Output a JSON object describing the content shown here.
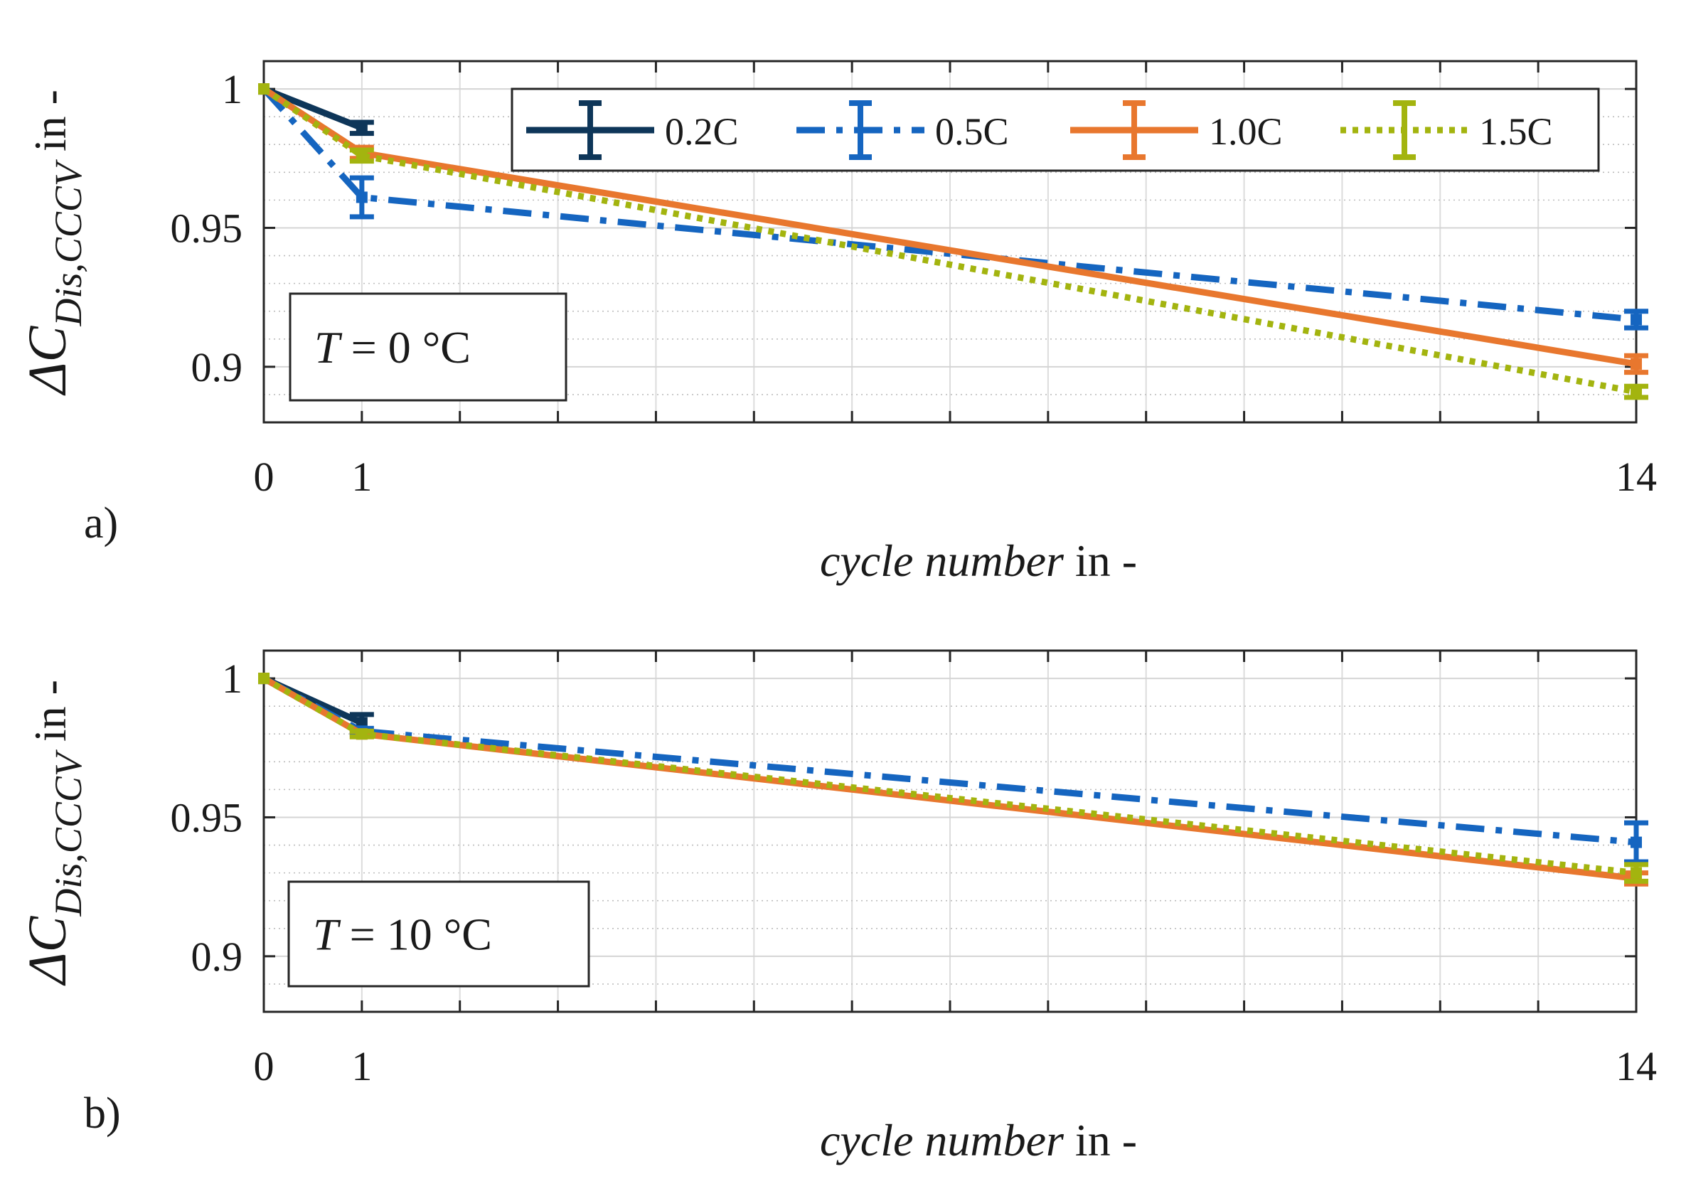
{
  "legend": [
    {
      "label": "0.2C",
      "color": "#0e3659",
      "dash": "solid"
    },
    {
      "label": "0.5C",
      "color": "#1565c0",
      "dash": "dashdot"
    },
    {
      "label": "1.0C",
      "color": "#e8772e",
      "dash": "solid"
    },
    {
      "label": "1.5C",
      "color": "#a3b40f",
      "dash": "dotted"
    }
  ],
  "chart_data": [
    {
      "type": "line",
      "panel_label": "a)",
      "annotation": {
        "prefix": "T",
        "text": " = 0 °C"
      },
      "xlabel": {
        "italic": "cycle number",
        "rest": " in -"
      },
      "ylabel": {
        "main": "ΔC",
        "sub": "Dis,CCCV",
        "rest": " in -"
      },
      "x_ticks": [
        0,
        1,
        14
      ],
      "y_ticks": [
        0.9,
        0.95,
        1
      ],
      "y_tick_labels": [
        "0.9",
        "0.95",
        "1"
      ],
      "xlim": [
        0,
        14
      ],
      "ylim": [
        0.88,
        1.01
      ],
      "series": [
        {
          "name": "0.2C",
          "x": [
            0,
            1
          ],
          "y": [
            1.0,
            0.986
          ],
          "err": [
            0,
            0.002
          ]
        },
        {
          "name": "0.5C",
          "x": [
            0,
            1,
            14
          ],
          "y": [
            1.0,
            0.961,
            0.917
          ],
          "err": [
            0,
            0.007,
            0.003
          ]
        },
        {
          "name": "1.0C",
          "x": [
            0,
            1,
            14
          ],
          "y": [
            1.0,
            0.977,
            0.901
          ],
          "err": [
            0,
            0.002,
            0.003
          ]
        },
        {
          "name": "1.5C",
          "x": [
            0,
            1,
            14
          ],
          "y": [
            1.0,
            0.976,
            0.891
          ],
          "err": [
            0,
            0.002,
            0.002
          ]
        }
      ]
    },
    {
      "type": "line",
      "panel_label": "b)",
      "annotation": {
        "prefix": "T",
        "text": " = 10 °C"
      },
      "xlabel": {
        "italic": "cycle number",
        "rest": " in -"
      },
      "ylabel": {
        "main": "ΔC",
        "sub": "Dis,CCCV",
        "rest": " in -"
      },
      "x_ticks": [
        0,
        1,
        14
      ],
      "y_ticks": [
        0.9,
        0.95,
        1
      ],
      "y_tick_labels": [
        "0.9",
        "0.95",
        "1"
      ],
      "xlim": [
        0,
        14
      ],
      "ylim": [
        0.88,
        1.01
      ],
      "series": [
        {
          "name": "0.2C",
          "x": [
            0,
            1
          ],
          "y": [
            1.0,
            0.984
          ],
          "err": [
            0,
            0.003
          ]
        },
        {
          "name": "0.5C",
          "x": [
            0,
            1,
            14
          ],
          "y": [
            1.0,
            0.981,
            0.941
          ],
          "err": [
            0,
            0.001,
            0.007
          ]
        },
        {
          "name": "1.0C",
          "x": [
            0,
            1,
            14
          ],
          "y": [
            1.0,
            0.98,
            0.928
          ],
          "err": [
            0,
            0.001,
            0.002
          ]
        },
        {
          "name": "1.5C",
          "x": [
            0,
            1,
            14
          ],
          "y": [
            1.0,
            0.98,
            0.93
          ],
          "err": [
            0,
            0.001,
            0.003
          ]
        }
      ]
    }
  ]
}
